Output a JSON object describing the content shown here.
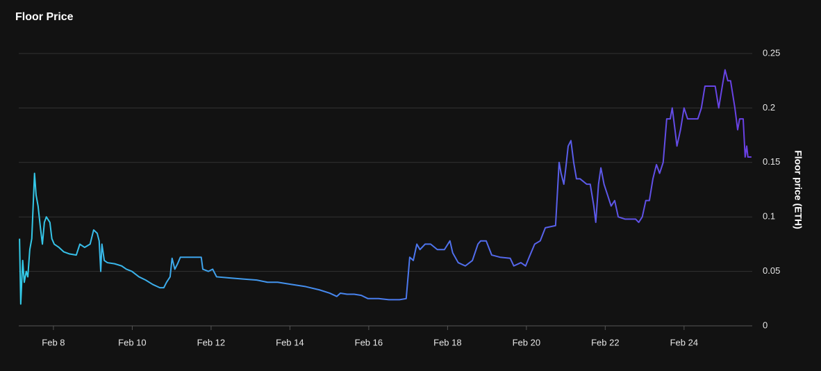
{
  "chart_data": {
    "type": "line",
    "title": "Floor Price",
    "y_label": "Floor price (ETH)",
    "x": [
      7.14,
      7.17,
      7.22,
      7.26,
      7.31,
      7.35,
      7.4,
      7.45,
      7.52,
      7.56,
      7.61,
      7.67,
      7.72,
      7.77,
      7.82,
      7.91,
      7.96,
      8.02,
      8.14,
      8.26,
      8.41,
      8.58,
      8.67,
      8.79,
      8.93,
      9.02,
      9.11,
      9.16,
      9.2,
      9.23,
      9.29,
      9.37,
      9.55,
      9.73,
      9.85,
      9.99,
      10.17,
      10.34,
      10.52,
      10.7,
      10.8,
      10.87,
      10.96,
      11.01,
      11.08,
      11.15,
      11.22,
      11.4,
      11.75,
      11.79,
      11.93,
      12.04,
      12.14,
      12.46,
      12.81,
      13.16,
      13.43,
      13.69,
      14.04,
      14.4,
      14.75,
      15.01,
      15.19,
      15.28,
      15.45,
      15.63,
      15.81,
      15.98,
      16.25,
      16.51,
      16.78,
      16.95,
      17.04,
      17.13,
      17.22,
      17.3,
      17.43,
      17.57,
      17.74,
      17.92,
      18.06,
      18.13,
      18.27,
      18.45,
      18.63,
      18.77,
      18.84,
      18.98,
      19.12,
      19.33,
      19.59,
      19.68,
      19.86,
      19.98,
      20.07,
      20.21,
      20.35,
      20.48,
      20.74,
      20.83,
      20.88,
      20.95,
      21.0,
      21.06,
      21.13,
      21.2,
      21.27,
      21.36,
      21.53,
      21.62,
      21.71,
      21.76,
      21.83,
      21.89,
      21.97,
      22.06,
      22.15,
      22.24,
      22.33,
      22.5,
      22.77,
      22.85,
      22.94,
      23.03,
      23.12,
      23.21,
      23.3,
      23.38,
      23.47,
      23.56,
      23.65,
      23.7,
      23.77,
      23.82,
      23.91,
      24.0,
      24.09,
      24.26,
      24.35,
      24.44,
      24.53,
      24.71,
      24.79,
      24.88,
      24.97,
      25.04,
      25.11,
      25.18,
      25.29,
      25.36,
      25.41,
      25.5,
      25.55,
      25.59,
      25.62,
      25.71
    ],
    "series": [
      {
        "name": "Floor price (ETH)",
        "colors": [
          "#33cbe8",
          "#4a7cf0",
          "#6a3fe4"
        ],
        "values": [
          0.08,
          0.02,
          0.06,
          0.04,
          0.05,
          0.045,
          0.07,
          0.08,
          0.14,
          0.12,
          0.11,
          0.09,
          0.075,
          0.095,
          0.1,
          0.095,
          0.08,
          0.075,
          0.072,
          0.068,
          0.066,
          0.065,
          0.075,
          0.072,
          0.075,
          0.088,
          0.085,
          0.078,
          0.05,
          0.075,
          0.06,
          0.058,
          0.057,
          0.055,
          0.052,
          0.05,
          0.045,
          0.042,
          0.038,
          0.035,
          0.035,
          0.04,
          0.045,
          0.062,
          0.052,
          0.057,
          0.063,
          0.063,
          0.063,
          0.052,
          0.05,
          0.052,
          0.045,
          0.044,
          0.043,
          0.042,
          0.04,
          0.04,
          0.038,
          0.036,
          0.033,
          0.03,
          0.027,
          0.03,
          0.029,
          0.029,
          0.028,
          0.025,
          0.025,
          0.024,
          0.024,
          0.025,
          0.063,
          0.06,
          0.075,
          0.07,
          0.075,
          0.075,
          0.07,
          0.07,
          0.078,
          0.067,
          0.058,
          0.055,
          0.06,
          0.075,
          0.078,
          0.078,
          0.065,
          0.063,
          0.062,
          0.055,
          0.058,
          0.055,
          0.063,
          0.075,
          0.078,
          0.09,
          0.092,
          0.15,
          0.14,
          0.13,
          0.145,
          0.165,
          0.17,
          0.15,
          0.135,
          0.135,
          0.13,
          0.13,
          0.11,
          0.095,
          0.13,
          0.145,
          0.13,
          0.12,
          0.11,
          0.115,
          0.1,
          0.098,
          0.098,
          0.095,
          0.1,
          0.115,
          0.115,
          0.135,
          0.148,
          0.14,
          0.15,
          0.19,
          0.19,
          0.2,
          0.18,
          0.165,
          0.18,
          0.2,
          0.19,
          0.19,
          0.19,
          0.2,
          0.22,
          0.22,
          0.22,
          0.2,
          0.22,
          0.235,
          0.225,
          0.225,
          0.2,
          0.18,
          0.19,
          0.19,
          0.155,
          0.165,
          0.155,
          0.155
        ]
      }
    ],
    "xlim": [
      7.12,
      25.73
    ],
    "xticks": [
      {
        "value": 8,
        "label": "Feb 8"
      },
      {
        "value": 10,
        "label": "Feb 10"
      },
      {
        "value": 12,
        "label": "Feb 12"
      },
      {
        "value": 14,
        "label": "Feb 14"
      },
      {
        "value": 16,
        "label": "Feb 16"
      },
      {
        "value": 18,
        "label": "Feb 18"
      },
      {
        "value": 20,
        "label": "Feb 20"
      },
      {
        "value": 22,
        "label": "Feb 22"
      },
      {
        "value": 24,
        "label": "Feb 24"
      }
    ],
    "ylim": [
      0,
      0.25
    ],
    "yticks": [
      0,
      0.05,
      0.1,
      0.15,
      0.2,
      0.25
    ],
    "grid": true
  }
}
